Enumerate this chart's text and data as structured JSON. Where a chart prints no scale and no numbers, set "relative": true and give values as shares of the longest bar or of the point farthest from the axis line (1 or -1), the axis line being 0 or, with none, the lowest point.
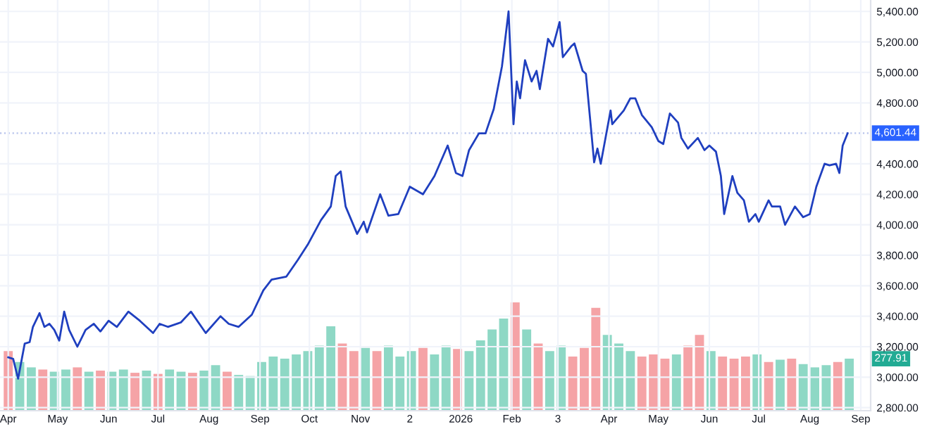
{
  "chart_data": [
    {
      "type": "line",
      "xlim": [
        "2025-03-27",
        "2026-09-07"
      ],
      "ylim": [
        2780,
        5475
      ],
      "grid": true,
      "marker": "none",
      "line_style": "solid",
      "xticks": [
        {
          "value": "2025-04-01",
          "label": "Apr"
        },
        {
          "value": "2025-05-01",
          "label": "May"
        },
        {
          "value": "2025-06-01",
          "label": "Jun"
        },
        {
          "value": "2025-07-01",
          "label": "Jul"
        },
        {
          "value": "2025-08-01",
          "label": "Aug"
        },
        {
          "value": "2025-09-01",
          "label": "Sep"
        },
        {
          "value": "2025-10-01",
          "label": "Oct"
        },
        {
          "value": "2025-11-01",
          "label": "Nov"
        },
        {
          "value": "2025-12-01",
          "label": "2"
        },
        {
          "value": "2026-01-01",
          "label": "2026"
        },
        {
          "value": "2026-02-01",
          "label": "Feb"
        },
        {
          "value": "2026-03-01",
          "label": "3"
        },
        {
          "value": "2026-04-01",
          "label": "Apr"
        },
        {
          "value": "2026-05-01",
          "label": "May"
        },
        {
          "value": "2026-06-01",
          "label": "Jun"
        },
        {
          "value": "2026-07-01",
          "label": "Jul"
        },
        {
          "value": "2026-08-01",
          "label": "Aug"
        },
        {
          "value": "2026-09-01",
          "label": "Sep"
        }
      ],
      "yticks": [
        {
          "value": 2800,
          "label": "2,800.00"
        },
        {
          "value": 3000,
          "label": "3,000.00"
        },
        {
          "value": 3200,
          "label": "3,200.00"
        },
        {
          "value": 3400,
          "label": "3,400.00"
        },
        {
          "value": 3600,
          "label": "3,600.00"
        },
        {
          "value": 3800,
          "label": "3,800.00"
        },
        {
          "value": 4000,
          "label": "4,000.00"
        },
        {
          "value": 4200,
          "label": "4,200.00"
        },
        {
          "value": 4400,
          "label": "4,400.00"
        },
        {
          "value": 4800,
          "label": "4,800.00"
        },
        {
          "value": 5000,
          "label": "5,000.00"
        },
        {
          "value": 5200,
          "label": "5,200.00"
        },
        {
          "value": 5400,
          "label": "5,400.00"
        }
      ],
      "ref_lines": [
        {
          "axis": "y",
          "value": 4601.44,
          "label": "4,601.44",
          "color": "#b7c4ec",
          "line_style": "dotted"
        }
      ],
      "series": [
        {
          "color": "#1f3fbf",
          "x": [
            "2025-04-01",
            "2025-04-04",
            "2025-04-07",
            "2025-04-11",
            "2025-04-14",
            "2025-04-16",
            "2025-04-20",
            "2025-04-23",
            "2025-04-26",
            "2025-04-29",
            "2025-05-02",
            "2025-05-05",
            "2025-05-08",
            "2025-05-13",
            "2025-05-18",
            "2025-05-23",
            "2025-05-27",
            "2025-06-01",
            "2025-06-06",
            "2025-06-13",
            "2025-06-20",
            "2025-06-28",
            "2025-07-02",
            "2025-07-07",
            "2025-07-15",
            "2025-07-21",
            "2025-07-30",
            "2025-08-08",
            "2025-08-13",
            "2025-08-19",
            "2025-08-27",
            "2025-09-03",
            "2025-09-08",
            "2025-09-17",
            "2025-09-24",
            "2025-09-30",
            "2025-10-08",
            "2025-10-14",
            "2025-10-17",
            "2025-10-20",
            "2025-10-23",
            "2025-10-30",
            "2025-11-03",
            "2025-11-05",
            "2025-11-13",
            "2025-11-18",
            "2025-11-24",
            "2025-12-01",
            "2025-12-09",
            "2025-12-16",
            "2025-12-24",
            "2025-12-29",
            "2026-01-02",
            "2026-01-06",
            "2026-01-12",
            "2026-01-16",
            "2026-01-21",
            "2026-01-26",
            "2026-01-30",
            "2026-02-02",
            "2026-02-04",
            "2026-02-06",
            "2026-02-09",
            "2026-02-13",
            "2026-02-16",
            "2026-02-18",
            "2026-02-23",
            "2026-02-26",
            "2026-03-02",
            "2026-03-04",
            "2026-03-09",
            "2026-03-11",
            "2026-03-16",
            "2026-03-18",
            "2026-03-23",
            "2026-03-25",
            "2026-03-27",
            "2026-04-02",
            "2026-04-03",
            "2026-04-10",
            "2026-04-14",
            "2026-04-17",
            "2026-04-21",
            "2026-04-27",
            "2026-05-01",
            "2026-05-04",
            "2026-05-08",
            "2026-05-13",
            "2026-05-15",
            "2026-05-19",
            "2026-05-25",
            "2026-05-29",
            "2026-06-01",
            "2026-06-05",
            "2026-06-08",
            "2026-06-10",
            "2026-06-15",
            "2026-06-18",
            "2026-06-22",
            "2026-06-25",
            "2026-06-29",
            "2026-07-01",
            "2026-07-07",
            "2026-07-09",
            "2026-07-14",
            "2026-07-17",
            "2026-07-23",
            "2026-07-28",
            "2026-08-01",
            "2026-08-05",
            "2026-08-10",
            "2026-08-13",
            "2026-08-17",
            "2026-08-19",
            "2026-08-21",
            "2026-08-24"
          ],
          "values": [
            3130,
            3120,
            2990,
            3220,
            3230,
            3330,
            3420,
            3330,
            3350,
            3310,
            3240,
            3430,
            3310,
            3200,
            3310,
            3350,
            3300,
            3370,
            3330,
            3430,
            3370,
            3290,
            3350,
            3330,
            3360,
            3430,
            3290,
            3400,
            3350,
            3330,
            3410,
            3570,
            3640,
            3660,
            3770,
            3870,
            4030,
            4120,
            4320,
            4350,
            4120,
            3940,
            4020,
            3950,
            4200,
            4060,
            4070,
            4250,
            4200,
            4320,
            4520,
            4340,
            4320,
            4490,
            4600,
            4600,
            4760,
            5040,
            5400,
            4660,
            4940,
            4830,
            5080,
            4940,
            5010,
            4890,
            5220,
            5170,
            5330,
            5100,
            5170,
            5190,
            5010,
            4990,
            4410,
            4500,
            4400,
            4750,
            4660,
            4750,
            4830,
            4830,
            4720,
            4640,
            4550,
            4530,
            4730,
            4670,
            4570,
            4500,
            4570,
            4490,
            4520,
            4480,
            4320,
            4070,
            4320,
            4210,
            4160,
            4020,
            4070,
            4020,
            4160,
            4120,
            4120,
            4000,
            4120,
            4050,
            4070,
            4250,
            4400,
            4390,
            4400,
            4340,
            4520,
            4600
          ]
        }
      ]
    },
    {
      "type": "bar",
      "relative": true,
      "xlim": [
        "2025-03-27",
        "2026-09-07"
      ],
      "tick_labels": false,
      "annotations": [
        "277.91"
      ],
      "series": [
        {
          "x": [
            "2025-04-01",
            "2025-04-08",
            "2025-04-15",
            "2025-04-22",
            "2025-04-29",
            "2025-05-06",
            "2025-05-13",
            "2025-05-20",
            "2025-05-27",
            "2025-06-03",
            "2025-06-10",
            "2025-06-17",
            "2025-06-24",
            "2025-07-01",
            "2025-07-08",
            "2025-07-15",
            "2025-07-22",
            "2025-07-29",
            "2025-08-05",
            "2025-08-12",
            "2025-08-19",
            "2025-08-26",
            "2025-09-02",
            "2025-09-09",
            "2025-09-16",
            "2025-09-23",
            "2025-09-30",
            "2025-10-07",
            "2025-10-14",
            "2025-10-21",
            "2025-10-28",
            "2025-11-04",
            "2025-11-11",
            "2025-11-18",
            "2025-11-25",
            "2025-12-02",
            "2025-12-09",
            "2025-12-16",
            "2025-12-23",
            "2025-12-30",
            "2026-01-06",
            "2026-01-13",
            "2026-01-20",
            "2026-01-27",
            "2026-02-03",
            "2026-02-10",
            "2026-02-17",
            "2026-02-24",
            "2026-03-03",
            "2026-03-10",
            "2026-03-17",
            "2026-03-24",
            "2026-03-31",
            "2026-04-07",
            "2026-04-14",
            "2026-04-21",
            "2026-04-28",
            "2026-05-05",
            "2026-05-12",
            "2026-05-19",
            "2026-05-26",
            "2026-06-02",
            "2026-06-09",
            "2026-06-16",
            "2026-06-23",
            "2026-06-30",
            "2026-07-07",
            "2026-07-14",
            "2026-07-21",
            "2026-07-28",
            "2026-08-04",
            "2026-08-11",
            "2026-08-18",
            "2026-08-25"
          ],
          "values": [
            0.55,
            0.45,
            0.4,
            0.38,
            0.36,
            0.38,
            0.4,
            0.36,
            0.37,
            0.36,
            0.38,
            0.35,
            0.37,
            0.34,
            0.38,
            0.36,
            0.35,
            0.37,
            0.42,
            0.36,
            0.33,
            0.32,
            0.45,
            0.5,
            0.48,
            0.52,
            0.55,
            0.6,
            0.78,
            0.62,
            0.55,
            0.58,
            0.55,
            0.6,
            0.5,
            0.55,
            0.58,
            0.52,
            0.6,
            0.57,
            0.55,
            0.65,
            0.75,
            0.85,
            1.0,
            0.75,
            0.62,
            0.55,
            0.6,
            0.5,
            0.58,
            0.95,
            0.7,
            0.62,
            0.55,
            0.5,
            0.52,
            0.48,
            0.52,
            0.6,
            0.7,
            0.55,
            0.5,
            0.48,
            0.5,
            0.52,
            0.45,
            0.47,
            0.48,
            0.43,
            0.4,
            0.42,
            0.45,
            0.48
          ],
          "colors": [
            "#f5a3a6",
            "#8ed8c5",
            "#8ed8c5",
            "#f5a3a6",
            "#8ed8c5",
            "#8ed8c5",
            "#f5a3a6",
            "#8ed8c5",
            "#f5a3a6",
            "#8ed8c5",
            "#8ed8c5",
            "#f5a3a6",
            "#8ed8c5",
            "#f5a3a6",
            "#8ed8c5",
            "#8ed8c5",
            "#f5a3a6",
            "#8ed8c5",
            "#8ed8c5",
            "#f5a3a6",
            "#8ed8c5",
            "#8ed8c5",
            "#8ed8c5",
            "#8ed8c5",
            "#8ed8c5",
            "#8ed8c5",
            "#8ed8c5",
            "#8ed8c5",
            "#8ed8c5",
            "#f5a3a6",
            "#f5a3a6",
            "#8ed8c5",
            "#f5a3a6",
            "#8ed8c5",
            "#8ed8c5",
            "#8ed8c5",
            "#f5a3a6",
            "#8ed8c5",
            "#8ed8c5",
            "#f5a3a6",
            "#8ed8c5",
            "#8ed8c5",
            "#8ed8c5",
            "#8ed8c5",
            "#f5a3a6",
            "#8ed8c5",
            "#f5a3a6",
            "#8ed8c5",
            "#8ed8c5",
            "#f5a3a6",
            "#f5a3a6",
            "#f5a3a6",
            "#8ed8c5",
            "#8ed8c5",
            "#8ed8c5",
            "#f5a3a6",
            "#f5a3a6",
            "#f5a3a6",
            "#8ed8c5",
            "#f5a3a6",
            "#f5a3a6",
            "#8ed8c5",
            "#f5a3a6",
            "#f5a3a6",
            "#f5a3a6",
            "#8ed8c5",
            "#f5a3a6",
            "#8ed8c5",
            "#f5a3a6",
            "#8ed8c5",
            "#8ed8c5",
            "#8ed8c5",
            "#f5a3a6",
            "#8ed8c5"
          ]
        }
      ]
    }
  ]
}
